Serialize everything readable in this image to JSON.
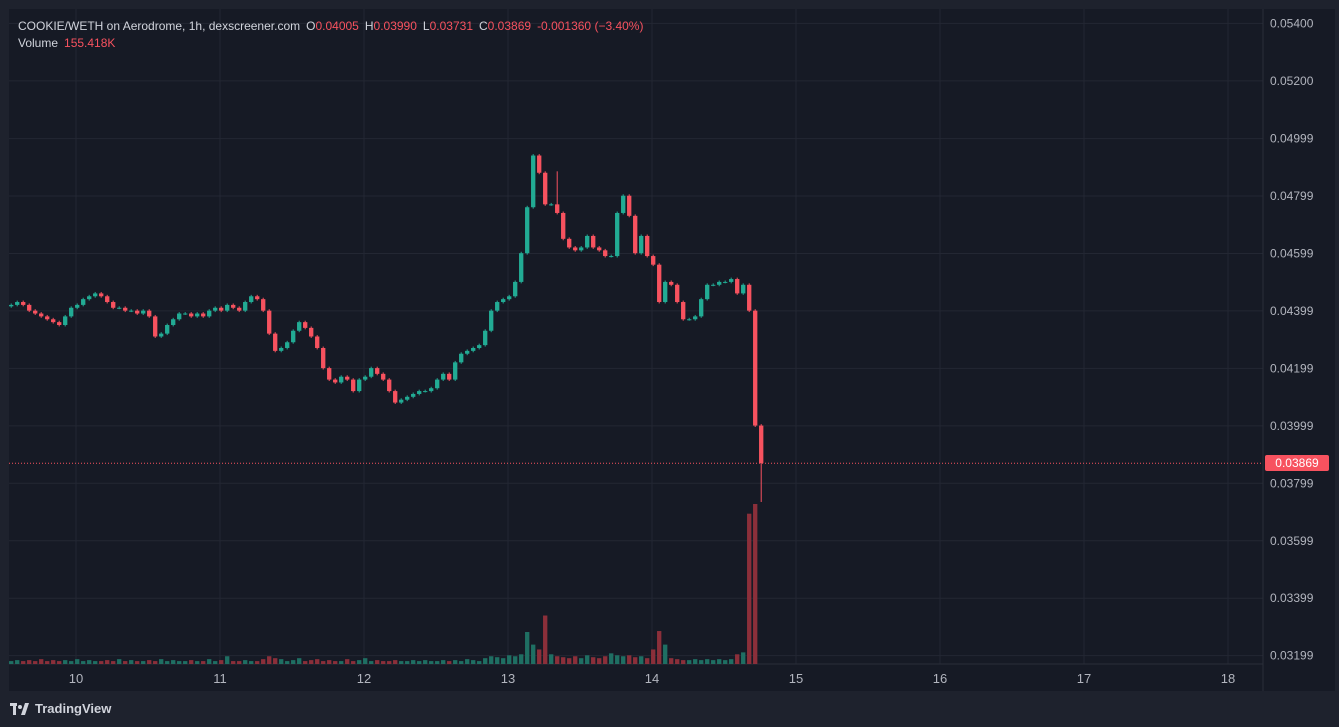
{
  "legend": {
    "pair": "COOKIE/WETH on Aerodrome, 1h, dexscreener.com",
    "o_label": "O",
    "o_value": "0.04005",
    "h_label": "H",
    "h_value": "0.03990",
    "l_label": "L",
    "l_value": "0.03731",
    "c_label": "C",
    "c_value": "0.03869",
    "change": "-0.001360 (−3.40%)",
    "volume_label": "Volume",
    "volume_value": "155.418K"
  },
  "footer": {
    "brand": "TradingView",
    "logo_icon": "tradingview-logo-icon"
  },
  "colors": {
    "up": "#22ab94",
    "down": "#f7525f",
    "volume_up": "#1f6f63",
    "volume_down": "#8b2f3a",
    "background": "#161a25",
    "grid": "#232733",
    "axis_text": "#b2b5be"
  },
  "chart_data": {
    "type": "candlestick",
    "title": "COOKIE/WETH on Aerodrome, 1h, dexscreener.com",
    "x_ticks": [
      "10",
      "11",
      "12",
      "13",
      "14",
      "15",
      "16",
      "17",
      "18"
    ],
    "y_ticks": [
      "0.05400",
      "0.05200",
      "0.04999",
      "0.04799",
      "0.04599",
      "0.04399",
      "0.04199",
      "0.03999",
      "0.03799",
      "0.03599",
      "0.03399",
      "0.03199"
    ],
    "ylim": [
      0.0317,
      0.0545
    ],
    "x_range_days": [
      9.55,
      18.3
    ],
    "current_price": "0.03869",
    "grid": true,
    "candles": {
      "start_day": 9.55,
      "interval_hours": 1,
      "closes": [
        0.0442,
        0.0443,
        0.0442,
        0.044,
        0.0439,
        0.0438,
        0.0437,
        0.0436,
        0.0435,
        0.0438,
        0.0441,
        0.0442,
        0.0444,
        0.0445,
        0.0446,
        0.0445,
        0.0443,
        0.0441,
        0.0441,
        0.044,
        0.044,
        0.0439,
        0.044,
        0.0438,
        0.0431,
        0.0432,
        0.0435,
        0.0437,
        0.0439,
        0.0439,
        0.0438,
        0.0439,
        0.0438,
        0.044,
        0.0441,
        0.044,
        0.0442,
        0.0441,
        0.044,
        0.0443,
        0.0445,
        0.0444,
        0.044,
        0.0432,
        0.0426,
        0.0427,
        0.0429,
        0.0433,
        0.0436,
        0.0434,
        0.0431,
        0.0427,
        0.042,
        0.0416,
        0.0415,
        0.0417,
        0.0416,
        0.0412,
        0.0416,
        0.0417,
        0.042,
        0.0418,
        0.0416,
        0.0412,
        0.0408,
        0.0409,
        0.041,
        0.0411,
        0.0412,
        0.0412,
        0.0413,
        0.0416,
        0.0418,
        0.0416,
        0.0422,
        0.0425,
        0.0426,
        0.0427,
        0.0428,
        0.0433,
        0.044,
        0.0443,
        0.0444,
        0.0445,
        0.045,
        0.046,
        0.0476,
        0.0494,
        0.0488,
        0.0477,
        0.0477,
        0.0474,
        0.0465,
        0.0462,
        0.0461,
        0.0462,
        0.0466,
        0.0462,
        0.0461,
        0.0459,
        0.0459,
        0.0474,
        0.048,
        0.0473,
        0.046,
        0.0466,
        0.0459,
        0.0456,
        0.0443,
        0.045,
        0.0449,
        0.0443,
        0.0437,
        0.0437,
        0.0438,
        0.0444,
        0.0449,
        0.0449,
        0.045,
        0.045,
        0.0451,
        0.0446,
        0.0449,
        0.044,
        0.04,
        0.03869
      ],
      "volumes": [
        0.3,
        0.4,
        0.3,
        0.4,
        0.3,
        0.5,
        0.3,
        0.4,
        0.3,
        0.4,
        0.3,
        0.5,
        0.3,
        0.4,
        0.3,
        0.3,
        0.4,
        0.3,
        0.5,
        0.3,
        0.4,
        0.3,
        0.3,
        0.4,
        0.3,
        0.5,
        0.3,
        0.4,
        0.3,
        0.3,
        0.4,
        0.3,
        0.3,
        0.5,
        0.3,
        0.4,
        0.8,
        0.3,
        0.3,
        0.4,
        0.3,
        0.3,
        0.5,
        0.8,
        0.6,
        0.5,
        0.3,
        0.4,
        0.6,
        0.3,
        0.4,
        0.5,
        0.3,
        0.4,
        0.3,
        0.3,
        0.5,
        0.3,
        0.4,
        0.6,
        0.3,
        0.4,
        0.3,
        0.3,
        0.4,
        0.3,
        0.3,
        0.4,
        0.3,
        0.4,
        0.3,
        0.3,
        0.4,
        0.3,
        0.4,
        0.3,
        0.5,
        0.4,
        0.3,
        0.6,
        0.8,
        0.7,
        0.6,
        0.9,
        0.8,
        1.0,
        3.3,
        2.0,
        1.5,
        5.0,
        1.0,
        0.8,
        0.7,
        0.6,
        0.8,
        0.6,
        0.9,
        0.7,
        0.6,
        0.8,
        1.1,
        0.9,
        0.8,
        0.9,
        0.7,
        0.8,
        0.6,
        1.5,
        3.4,
        2.0,
        0.6,
        0.5,
        0.4,
        0.4,
        0.5,
        0.4,
        0.5,
        0.4,
        0.5,
        0.4,
        0.5,
        1.0,
        1.2,
        15.5,
        16.5
      ]
    },
    "volume": "155.418K"
  }
}
